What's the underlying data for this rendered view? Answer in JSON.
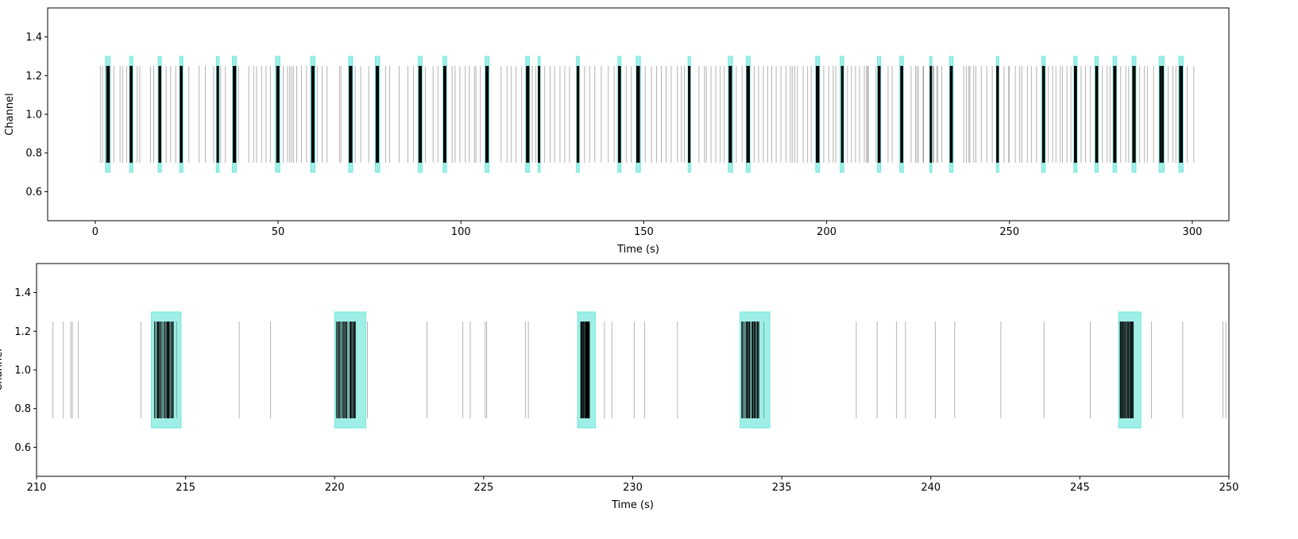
{
  "chart_data": [
    {
      "type": "raster",
      "xlabel": "Time (s)",
      "ylabel": "Channel",
      "xlim": [
        -13,
        310
      ],
      "ylim": [
        0.45,
        1.55
      ],
      "xticks": [
        0,
        50,
        100,
        150,
        200,
        250,
        300
      ],
      "yticks": [
        0.6,
        0.8,
        1.0,
        1.2,
        1.4
      ],
      "grid": false,
      "spike_extent": [
        0.75,
        1.25
      ],
      "burst_extent": [
        0.7,
        1.3
      ],
      "burst_color": "#40e0d0",
      "spike_color": "#000000",
      "bursts": [
        [
          2.8,
          4.1
        ],
        [
          9.4,
          10.3
        ],
        [
          17.2,
          18.1
        ],
        [
          23.1,
          24.0
        ],
        [
          33.1,
          33.9
        ],
        [
          37.5,
          38.6
        ],
        [
          49.3,
          50.5
        ],
        [
          58.9,
          60.1
        ],
        [
          69.3,
          70.4
        ],
        [
          76.6,
          77.8
        ],
        [
          88.3,
          89.4
        ],
        [
          95.1,
          96.1
        ],
        [
          106.6,
          107.7
        ],
        [
          117.7,
          118.8
        ],
        [
          121.1,
          121.7
        ],
        [
          131.6,
          132.4
        ],
        [
          142.9,
          143.8
        ],
        [
          147.9,
          149.1
        ],
        [
          162.1,
          162.8
        ],
        [
          173.1,
          174.3
        ],
        [
          178.0,
          179.1
        ],
        [
          197.0,
          198.1
        ],
        [
          203.7,
          204.7
        ],
        [
          213.9,
          214.8
        ],
        [
          220.0,
          221.0
        ],
        [
          228.2,
          228.8
        ],
        [
          233.6,
          234.6
        ],
        [
          246.4,
          247.1
        ],
        [
          258.8,
          259.8
        ],
        [
          267.6,
          268.5
        ],
        [
          273.4,
          274.3
        ],
        [
          278.3,
          279.3
        ],
        [
          283.5,
          284.6
        ],
        [
          290.9,
          292.3
        ],
        [
          296.3,
          297.5
        ]
      ],
      "isolated_spikes": [
        1.4,
        2.0,
        5.1,
        6.8,
        7.5,
        8.6,
        11.5,
        12.2,
        15.1,
        16.0,
        19.4,
        20.6,
        22.0,
        25.6,
        28.4,
        30.1,
        32.4,
        34.3,
        35.6,
        39.2,
        42.0,
        43.3,
        44.1,
        45.5,
        46.7,
        47.9,
        51.4,
        52.6,
        53.2,
        53.7,
        54.2,
        55.1,
        56.4,
        57.8,
        60.7,
        62.1,
        63.4,
        66.8,
        67.2,
        71.1,
        72.6,
        74.8,
        79.4,
        80.5,
        83.1,
        85.5,
        87.0,
        90.3,
        92.4,
        93.7,
        97.6,
        98.4,
        99.7,
        101.2,
        102.3,
        103.7,
        104.1,
        105.3,
        111.0,
        112.6,
        113.8,
        115.1,
        116.6,
        119.5,
        120.5,
        122.9,
        124.4,
        125.6,
        127.1,
        128.4,
        129.7,
        133.8,
        135.2,
        136.6,
        138.4,
        140.3,
        141.9,
        145.2,
        146.6,
        150.4,
        152.1,
        153.5,
        154.8,
        156.1,
        157.5,
        159.2,
        160.3,
        161.1,
        165.1,
        166.6,
        167.1,
        168.4,
        169.7,
        170.9,
        172.0,
        175.3,
        176.9,
        180.2,
        181.4,
        182.7,
        183.9,
        185.0,
        186.2,
        187.5,
        188.9,
        190.1,
        190.6,
        191.3,
        192.0,
        193.6,
        194.8,
        195.8,
        199.2,
        200.6,
        201.8,
        202.5,
        205.7,
        206.8,
        207.9,
        209.0,
        210.3,
        210.9,
        211.2,
        211.4,
        213.5,
        216.8,
        217.9,
        223.1,
        224.3,
        224.7,
        225.1,
        226.4,
        226.5,
        229.1,
        229.3,
        230.1,
        230.4,
        231.5,
        237.5,
        238.2,
        238.9,
        239.2,
        240.2,
        240.8,
        242.3,
        243.8,
        245.3,
        248.5,
        249.8,
        249.9,
        251.6,
        252.8,
        253.4,
        254.9,
        256.0,
        257.4,
        260.6,
        261.8,
        262.7,
        263.9,
        264.5,
        265.7,
        266.8,
        269.6,
        270.8,
        272.1,
        275.4,
        276.7,
        277.5,
        280.4,
        281.8,
        282.6,
        285.6,
        286.9,
        287.7,
        289.4,
        293.4,
        294.7,
        295.5,
        298.6,
        300.4
      ],
      "burst_spike_density": 25
    },
    {
      "type": "raster",
      "xlabel": "Time (s)",
      "ylabel": "Channel",
      "xlim": [
        210,
        250
      ],
      "ylim": [
        0.45,
        1.55
      ],
      "xticks": [
        210,
        215,
        220,
        225,
        230,
        235,
        240,
        245,
        250
      ],
      "yticks": [
        0.6,
        0.8,
        1.0,
        1.2,
        1.4
      ],
      "grid": false,
      "spike_extent": [
        0.75,
        1.25
      ],
      "burst_extent": [
        0.7,
        1.3
      ],
      "burst_color": "#40e0d0",
      "spike_color": "#000000",
      "bursts": [
        [
          213.85,
          214.85
        ],
        [
          220.0,
          221.05
        ],
        [
          228.15,
          228.75
        ],
        [
          233.6,
          234.6
        ],
        [
          246.3,
          247.05
        ]
      ],
      "burst_spike_ranges": [
        [
          213.95,
          214.6
        ],
        [
          220.05,
          220.7
        ],
        [
          228.25,
          228.55
        ],
        [
          233.65,
          234.25
        ],
        [
          246.35,
          246.8
        ]
      ],
      "isolated_spikes": [
        210.55,
        210.9,
        211.15,
        211.2,
        211.4,
        213.5,
        214.7,
        216.8,
        217.85,
        221.1,
        223.1,
        224.3,
        224.55,
        225.05,
        225.1,
        226.4,
        226.5,
        229.05,
        229.3,
        230.05,
        230.4,
        231.5,
        234.4,
        237.5,
        238.2,
        238.85,
        239.15,
        240.15,
        240.8,
        242.35,
        243.8,
        245.35,
        247.4,
        248.45,
        249.8,
        249.9
      ],
      "burst_spike_density": 45
    }
  ]
}
